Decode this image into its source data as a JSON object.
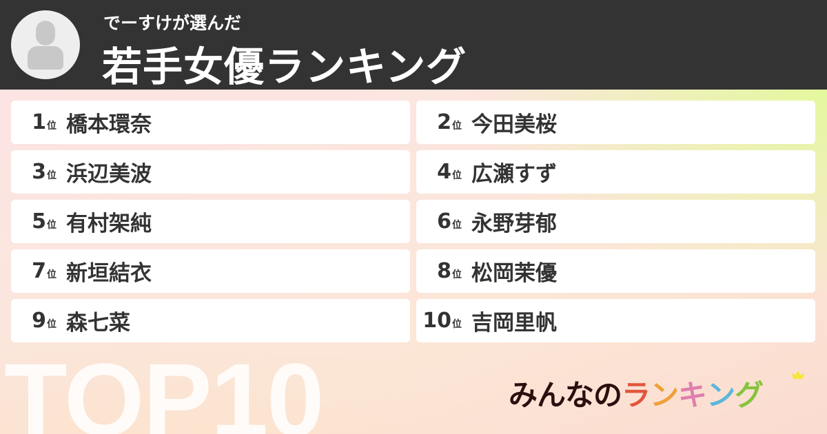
{
  "header": {
    "subtitle": "でーすけが選んだ",
    "title": "若手女優ランキング"
  },
  "rank_suffix": "位",
  "items": [
    {
      "rank": "1",
      "name": "橋本環奈"
    },
    {
      "rank": "2",
      "name": "今田美桜"
    },
    {
      "rank": "3",
      "name": "浜辺美波"
    },
    {
      "rank": "4",
      "name": "広瀬すず"
    },
    {
      "rank": "5",
      "name": "有村架純"
    },
    {
      "rank": "6",
      "name": "永野芽郁"
    },
    {
      "rank": "7",
      "name": "新垣結衣"
    },
    {
      "rank": "8",
      "name": "松岡茉優"
    },
    {
      "rank": "9",
      "name": "森七菜"
    },
    {
      "rank": "10",
      "name": "吉岡里帆"
    }
  ],
  "badge": "TOP10",
  "logo": {
    "text": "みんなのランキング",
    "parts": [
      "みんなの",
      "ラ",
      "ン",
      "キ",
      "ン",
      "グ"
    ],
    "colors": [
      "#2a0f0f",
      "#e2553b",
      "#eea03a",
      "#de7fae",
      "#5bb6dc",
      "#86c43c"
    ],
    "crown_color": "#f5e63a"
  }
}
